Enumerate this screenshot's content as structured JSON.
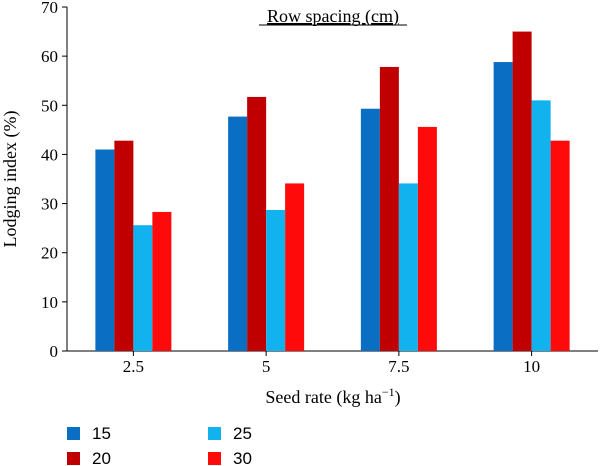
{
  "chart_data": {
    "type": "bar",
    "title": "Row spacing (cm)",
    "xlabel": "Seed rate (kg ha",
    "xlabel_sup": "−1",
    "xlabel_close": ")",
    "ylabel": "Lodging index (%)",
    "categories": [
      "2.5",
      "5",
      "7.5",
      "10"
    ],
    "ylim": [
      0,
      70
    ],
    "yticks": [
      0,
      10,
      20,
      30,
      40,
      50,
      60,
      70
    ],
    "grid": false,
    "legend_position": "bottom-left",
    "series": [
      {
        "name": "15",
        "color": "#0a6fc2",
        "values": [
          41,
          47.7,
          49.3,
          58.8
        ]
      },
      {
        "name": "20",
        "color": "#c00000",
        "values": [
          42.8,
          51.7,
          57.8,
          65
        ]
      },
      {
        "name": "25",
        "color": "#12b2ee",
        "values": [
          25.6,
          28.7,
          34.1,
          51
        ]
      },
      {
        "name": "30",
        "color": "#ff0a0a",
        "values": [
          28.3,
          34.1,
          45.6,
          42.8
        ]
      }
    ]
  }
}
